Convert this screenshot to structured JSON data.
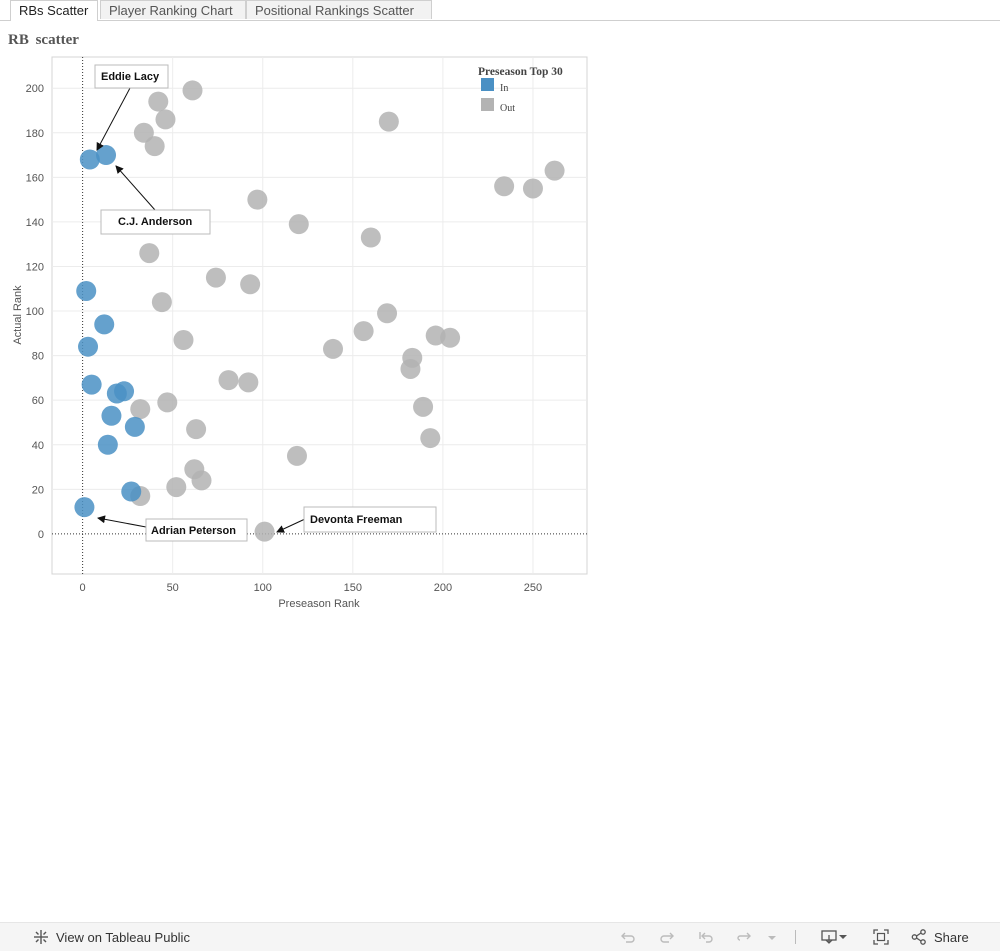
{
  "tabs": [
    {
      "label": "RBs Scatter",
      "active": true
    },
    {
      "label": "Player Ranking Chart",
      "active": false
    },
    {
      "label": "Positional Rankings Scatter",
      "active": false
    }
  ],
  "sheet_title": "RB  scatter",
  "legend": {
    "title": "Preseason  Top  30",
    "items": [
      {
        "label": "In",
        "color": "#4a90c4"
      },
      {
        "label": "Out",
        "color": "#b3b3b3"
      }
    ]
  },
  "chart_data": {
    "type": "scatter",
    "xlabel": "Preseason Rank",
    "ylabel": "Actual Rank",
    "xlim": [
      -17,
      280
    ],
    "ylim": [
      -18,
      214
    ],
    "xticks": [
      0,
      50,
      100,
      150,
      200,
      250
    ],
    "yticks": [
      0,
      20,
      40,
      60,
      80,
      100,
      120,
      140,
      160,
      180,
      200
    ],
    "reference_lines": {
      "x": 0,
      "y": 0
    },
    "series": [
      {
        "name": "In",
        "color": "#4a90c4",
        "points": [
          {
            "x": 4,
            "y": 168
          },
          {
            "x": 13,
            "y": 170
          },
          {
            "x": 2,
            "y": 109
          },
          {
            "x": 12,
            "y": 94
          },
          {
            "x": 3,
            "y": 84
          },
          {
            "x": 5,
            "y": 67
          },
          {
            "x": 19,
            "y": 63
          },
          {
            "x": 23,
            "y": 64
          },
          {
            "x": 16,
            "y": 53
          },
          {
            "x": 29,
            "y": 48
          },
          {
            "x": 14,
            "y": 40
          },
          {
            "x": 27,
            "y": 19
          },
          {
            "x": 1,
            "y": 12
          }
        ]
      },
      {
        "name": "Out",
        "color": "#b3b3b3",
        "points": [
          {
            "x": 61,
            "y": 199
          },
          {
            "x": 42,
            "y": 194
          },
          {
            "x": 46,
            "y": 186
          },
          {
            "x": 34,
            "y": 180
          },
          {
            "x": 40,
            "y": 174
          },
          {
            "x": 170,
            "y": 185
          },
          {
            "x": 97,
            "y": 150
          },
          {
            "x": 120,
            "y": 139
          },
          {
            "x": 160,
            "y": 133
          },
          {
            "x": 37,
            "y": 126
          },
          {
            "x": 74,
            "y": 115
          },
          {
            "x": 93,
            "y": 112
          },
          {
            "x": 44,
            "y": 104
          },
          {
            "x": 169,
            "y": 99
          },
          {
            "x": 156,
            "y": 91
          },
          {
            "x": 56,
            "y": 87
          },
          {
            "x": 139,
            "y": 83
          },
          {
            "x": 196,
            "y": 89
          },
          {
            "x": 204,
            "y": 88
          },
          {
            "x": 183,
            "y": 79
          },
          {
            "x": 182,
            "y": 74
          },
          {
            "x": 81,
            "y": 69
          },
          {
            "x": 92,
            "y": 68
          },
          {
            "x": 47,
            "y": 59
          },
          {
            "x": 32,
            "y": 56
          },
          {
            "x": 189,
            "y": 57
          },
          {
            "x": 63,
            "y": 47
          },
          {
            "x": 193,
            "y": 43
          },
          {
            "x": 119,
            "y": 35
          },
          {
            "x": 62,
            "y": 29
          },
          {
            "x": 66,
            "y": 24
          },
          {
            "x": 52,
            "y": 21
          },
          {
            "x": 32,
            "y": 17
          },
          {
            "x": 234,
            "y": 156
          },
          {
            "x": 250,
            "y": 155
          },
          {
            "x": 262,
            "y": 163
          },
          {
            "x": 101,
            "y": 1
          }
        ]
      }
    ],
    "annotations": [
      {
        "text": "Eddie Lacy",
        "target": {
          "x": 4,
          "y": 168
        }
      },
      {
        "text": "C.J. Anderson",
        "target": {
          "x": 13,
          "y": 170
        }
      },
      {
        "text": "Adrian Peterson",
        "target": {
          "x": 1,
          "y": 12
        }
      },
      {
        "text": "Devonta Freeman",
        "target": {
          "x": 101,
          "y": 1
        }
      }
    ]
  },
  "toolbar": {
    "view_label": "View on Tableau Public",
    "share_label": "Share",
    "icons": [
      "tableau-icon",
      "undo-icon",
      "redo-icon",
      "revert-icon",
      "refresh-icon",
      "pause-dropdown-icon",
      "download-icon",
      "fullscreen-icon",
      "share-icon"
    ]
  }
}
